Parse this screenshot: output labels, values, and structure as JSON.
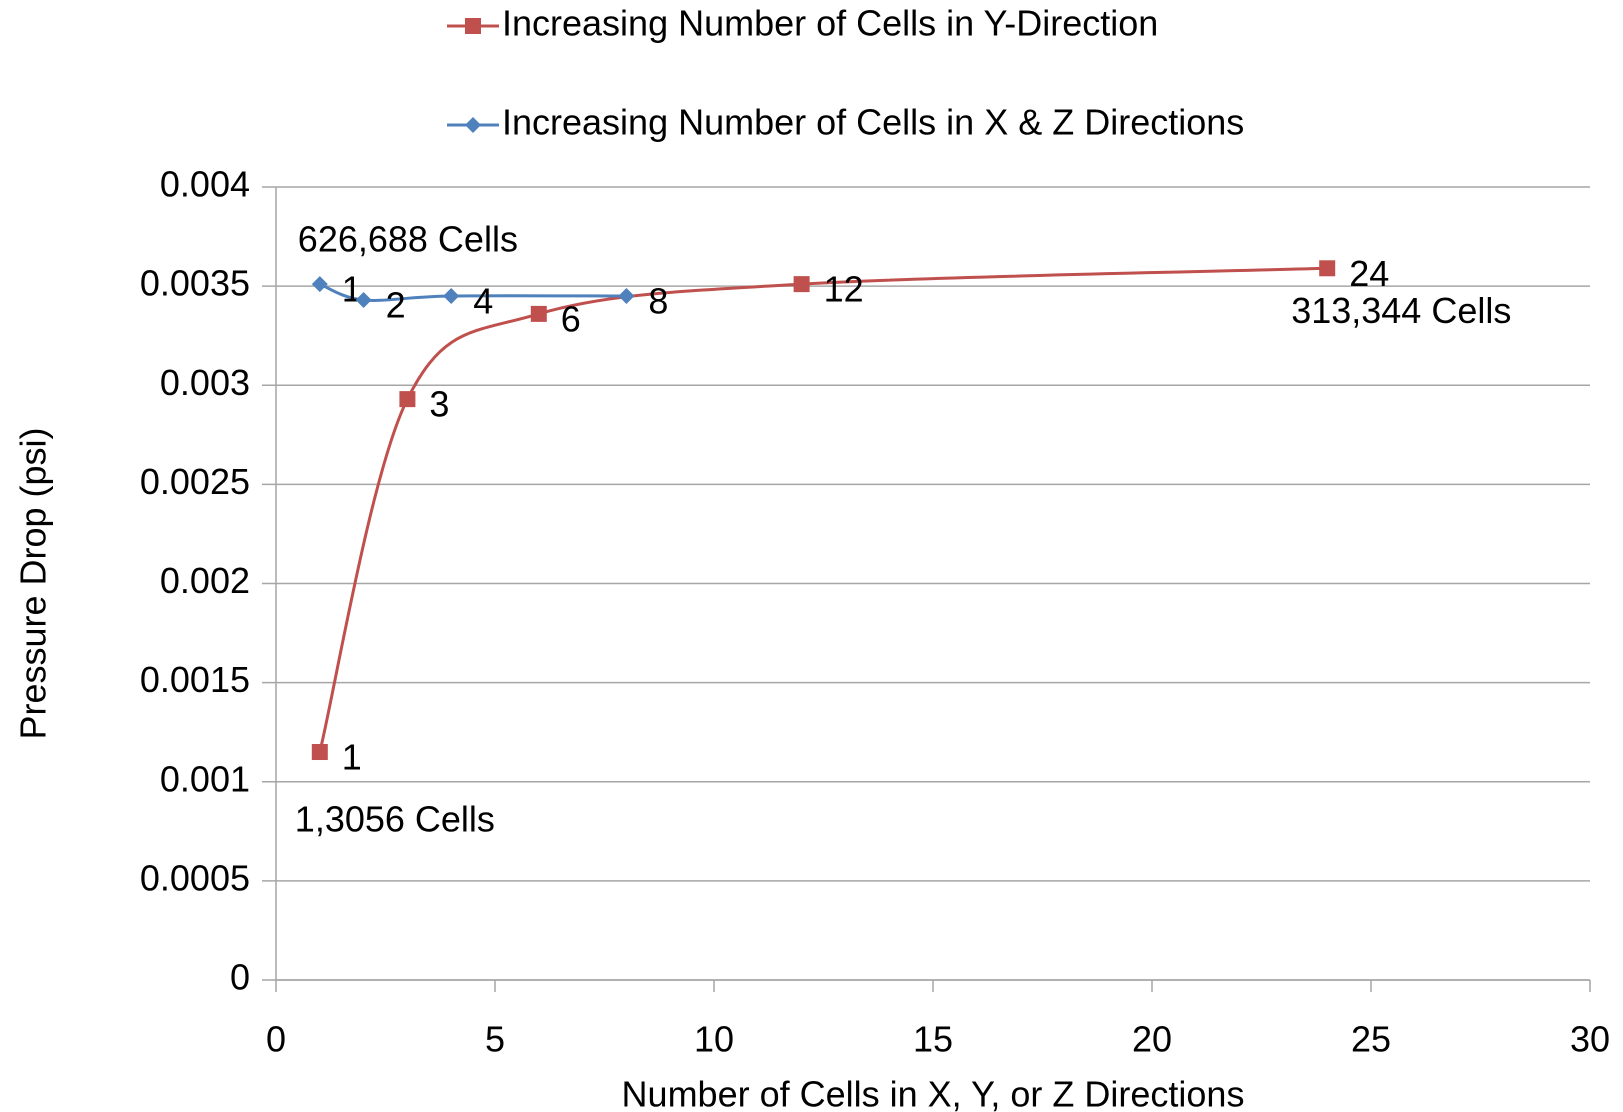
{
  "chart_data": {
    "type": "line",
    "x_label": "Number of Cells in X, Y, or Z Directions",
    "y_label": "Pressure Drop (psi)",
    "xlim": [
      0,
      30
    ],
    "xticks": [
      0,
      5,
      10,
      15,
      20,
      25,
      30
    ],
    "ylim": [
      0,
      0.004
    ],
    "yticks": [
      0,
      0.0005,
      0.001,
      0.0015,
      0.002,
      0.0025,
      0.003,
      0.0035,
      0.004
    ],
    "grid": true,
    "legend": "top",
    "series": [
      {
        "name": "Increasing Number of Cells in Y-Direction",
        "color": "#c0504d",
        "marker": "square",
        "smooth": true,
        "x": [
          1,
          3,
          6,
          12,
          24
        ],
        "values": [
          0.00115,
          0.00293,
          0.00336,
          0.00351,
          0.00359
        ]
      },
      {
        "name": "Increasing Number of Cells in X & Z Directions",
        "color": "#4f81bd",
        "marker": "diamond",
        "smooth": true,
        "x": [
          1,
          2,
          4,
          8
        ],
        "values": [
          0.00351,
          0.00343,
          0.00345,
          0.00345
        ]
      }
    ],
    "annotations": [
      {
        "text": "626,688 Cells",
        "series": 1,
        "point": 0
      },
      {
        "text": "1,3056 Cells",
        "series": 0,
        "point": 0
      },
      {
        "text": "313,344 Cells",
        "series": 0,
        "point": 4
      }
    ]
  }
}
